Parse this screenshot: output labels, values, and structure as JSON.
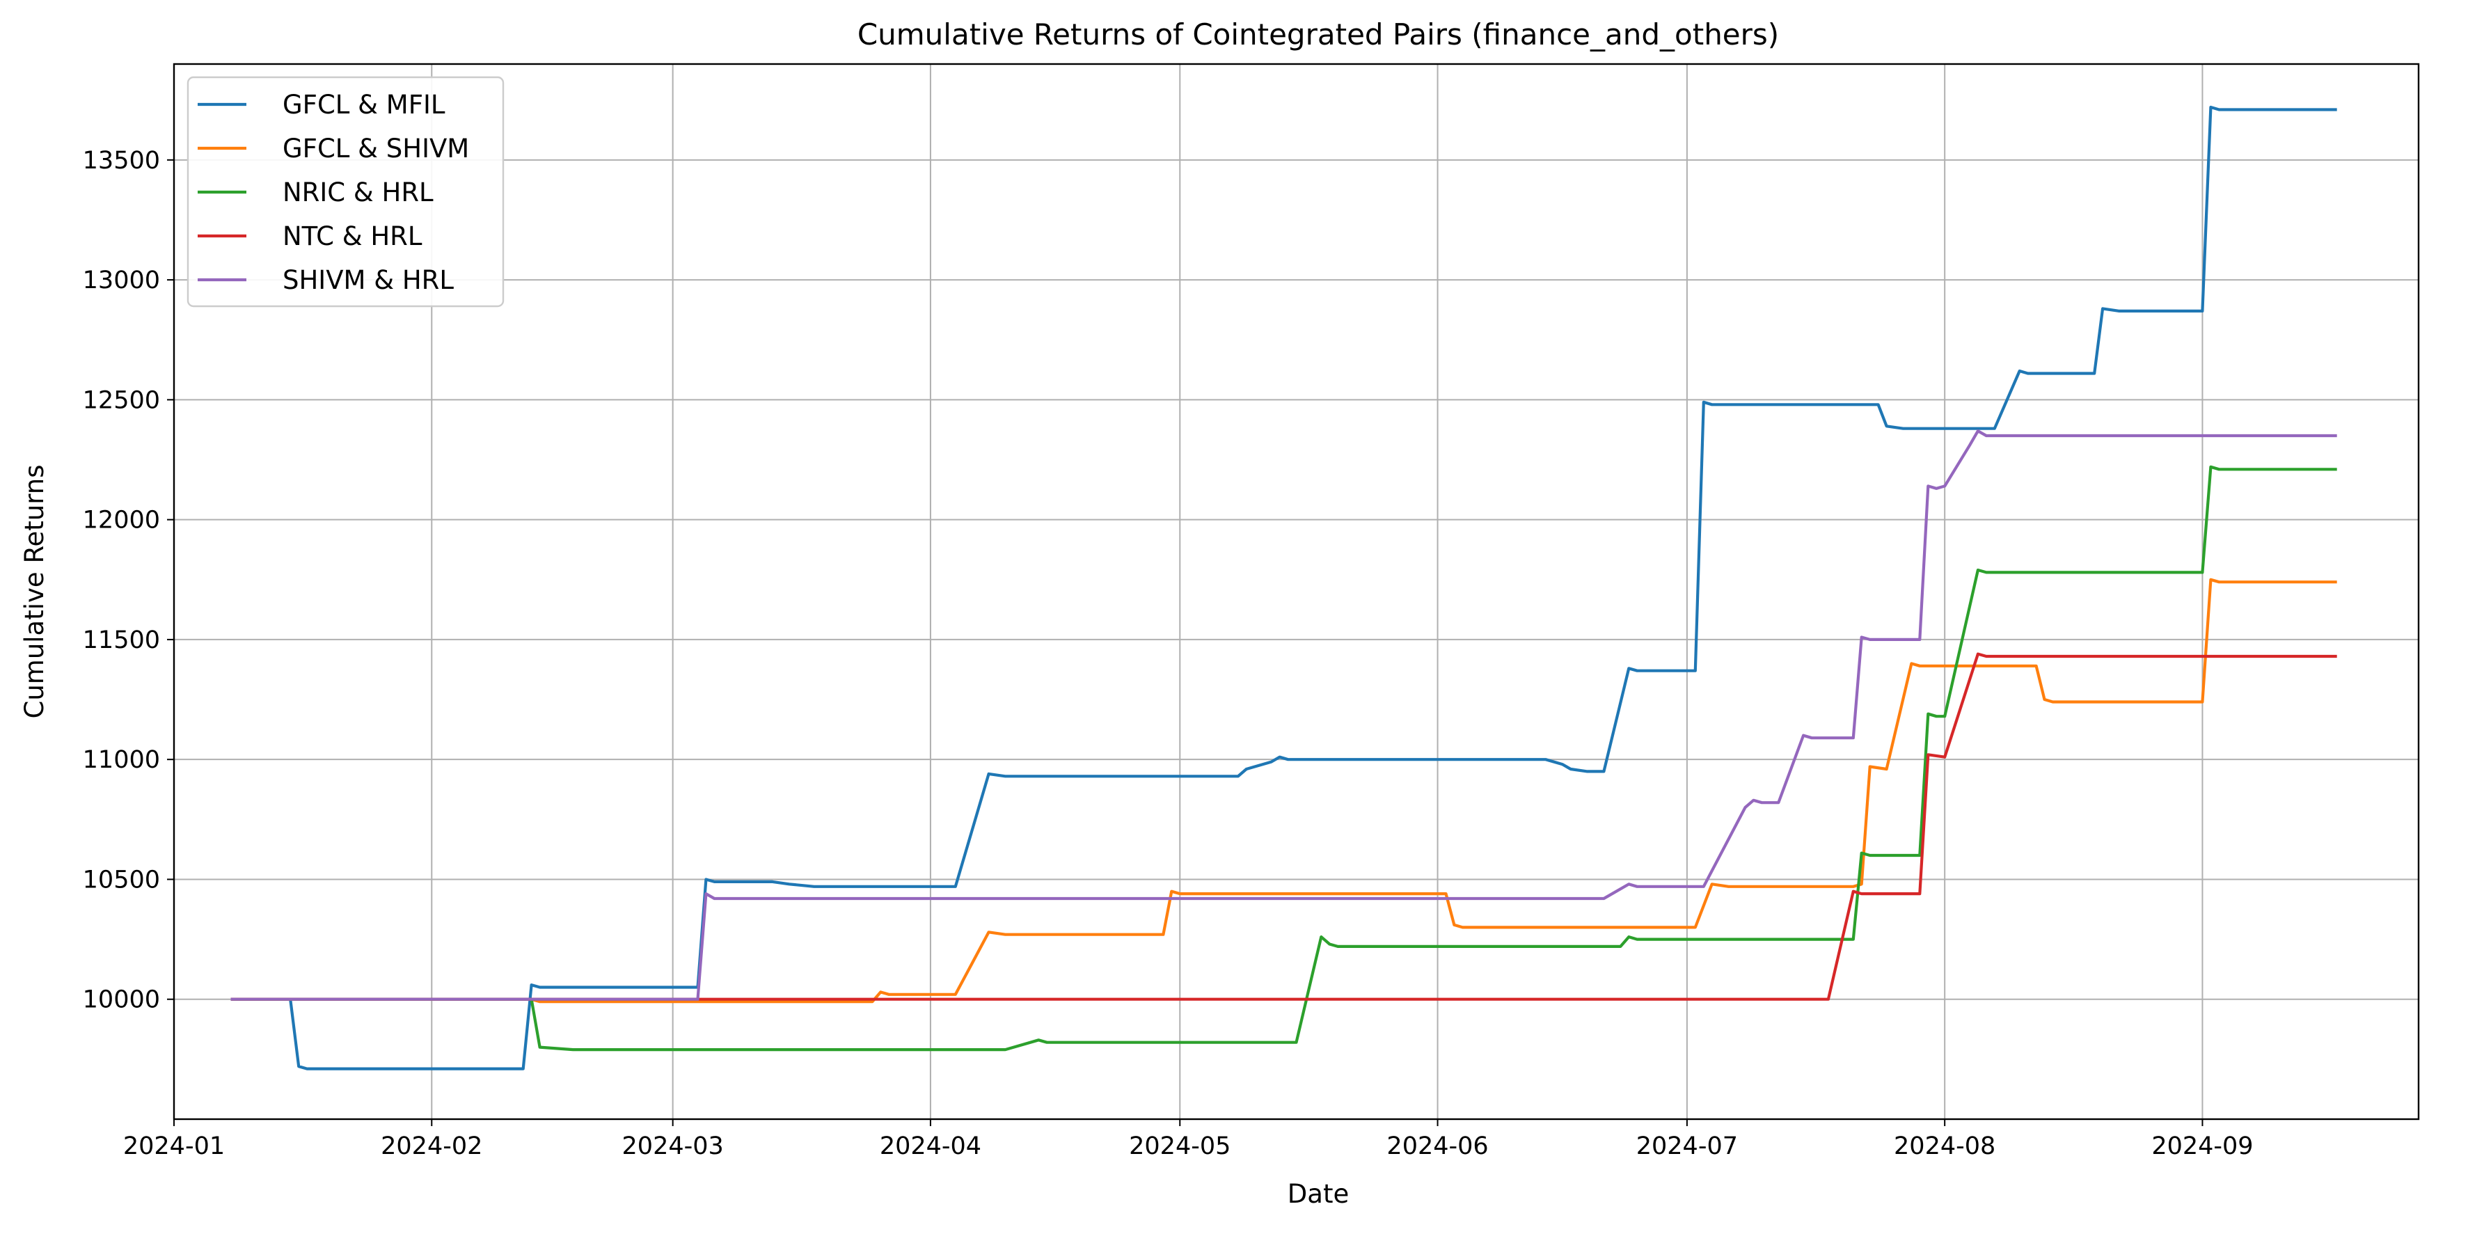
{
  "chart_data": {
    "type": "line",
    "title": "Cumulative Returns of Cointegrated Pairs (finance_and_others)",
    "xlabel": "Date",
    "ylabel": "Cumulative Returns",
    "xlim": [
      "2024-01-01",
      "2024-09-27"
    ],
    "ylim": [
      9500,
      13900
    ],
    "x_ticks": [
      "2024-01-01",
      "2024-02-01",
      "2024-03-01",
      "2024-04-01",
      "2024-05-01",
      "2024-06-01",
      "2024-07-01",
      "2024-08-01",
      "2024-09-01"
    ],
    "x_tick_labels": [
      "2024-01",
      "2024-02",
      "2024-03",
      "2024-04",
      "2024-05",
      "2024-06",
      "2024-07",
      "2024-08",
      "2024-09"
    ],
    "y_ticks": [
      10000,
      10500,
      11000,
      11500,
      12000,
      12500,
      13000,
      13500
    ],
    "y_tick_labels": [
      "10000",
      "10500",
      "11000",
      "11500",
      "12000",
      "12500",
      "13000",
      "13500"
    ],
    "grid": true,
    "legend_position": "upper-left",
    "series": [
      {
        "name": "GFCL & MFIL",
        "color": "#1f77b4",
        "points": [
          [
            "2024-01-08",
            10000
          ],
          [
            "2024-01-15",
            10000
          ],
          [
            "2024-01-16",
            9720
          ],
          [
            "2024-01-17",
            9710
          ],
          [
            "2024-02-12",
            9710
          ],
          [
            "2024-02-13",
            10060
          ],
          [
            "2024-02-14",
            10050
          ],
          [
            "2024-03-04",
            10050
          ],
          [
            "2024-03-05",
            10500
          ],
          [
            "2024-03-06",
            10490
          ],
          [
            "2024-03-13",
            10490
          ],
          [
            "2024-03-15",
            10480
          ],
          [
            "2024-03-18",
            10470
          ],
          [
            "2024-04-04",
            10470
          ],
          [
            "2024-04-08",
            10940
          ],
          [
            "2024-04-10",
            10930
          ],
          [
            "2024-05-06",
            10930
          ],
          [
            "2024-05-08",
            10930
          ],
          [
            "2024-05-09",
            10960
          ],
          [
            "2024-05-12",
            10990
          ],
          [
            "2024-05-13",
            11010
          ],
          [
            "2024-05-14",
            11000
          ],
          [
            "2024-06-14",
            11000
          ],
          [
            "2024-06-16",
            10980
          ],
          [
            "2024-06-17",
            10960
          ],
          [
            "2024-06-19",
            10950
          ],
          [
            "2024-06-21",
            10950
          ],
          [
            "2024-06-24",
            11380
          ],
          [
            "2024-06-25",
            11370
          ],
          [
            "2024-07-02",
            11370
          ],
          [
            "2024-07-03",
            12490
          ],
          [
            "2024-07-04",
            12480
          ],
          [
            "2024-07-24",
            12480
          ],
          [
            "2024-07-25",
            12390
          ],
          [
            "2024-07-27",
            12380
          ],
          [
            "2024-08-07",
            12380
          ],
          [
            "2024-08-10",
            12620
          ],
          [
            "2024-08-11",
            12610
          ],
          [
            "2024-08-19",
            12610
          ],
          [
            "2024-08-20",
            12880
          ],
          [
            "2024-08-22",
            12870
          ],
          [
            "2024-09-01",
            12870
          ],
          [
            "2024-09-02",
            13720
          ],
          [
            "2024-09-03",
            13710
          ],
          [
            "2024-09-17",
            13710
          ]
        ]
      },
      {
        "name": "GFCL & SHIVM",
        "color": "#ff7f0e",
        "points": [
          [
            "2024-01-08",
            10000
          ],
          [
            "2024-02-13",
            10000
          ],
          [
            "2024-02-14",
            9990
          ],
          [
            "2024-03-04",
            9990
          ],
          [
            "2024-03-25",
            9990
          ],
          [
            "2024-03-26",
            10030
          ],
          [
            "2024-03-27",
            10020
          ],
          [
            "2024-04-04",
            10020
          ],
          [
            "2024-04-08",
            10280
          ],
          [
            "2024-04-10",
            10270
          ],
          [
            "2024-04-29",
            10270
          ],
          [
            "2024-04-30",
            10450
          ],
          [
            "2024-05-01",
            10440
          ],
          [
            "2024-06-02",
            10440
          ],
          [
            "2024-06-03",
            10310
          ],
          [
            "2024-06-04",
            10300
          ],
          [
            "2024-07-02",
            10300
          ],
          [
            "2024-07-04",
            10480
          ],
          [
            "2024-07-06",
            10470
          ],
          [
            "2024-07-21",
            10470
          ],
          [
            "2024-07-22",
            10480
          ],
          [
            "2024-07-23",
            10970
          ],
          [
            "2024-07-25",
            10960
          ],
          [
            "2024-07-28",
            11400
          ],
          [
            "2024-07-29",
            11390
          ],
          [
            "2024-08-12",
            11390
          ],
          [
            "2024-08-13",
            11250
          ],
          [
            "2024-08-14",
            11240
          ],
          [
            "2024-09-01",
            11240
          ],
          [
            "2024-09-02",
            11750
          ],
          [
            "2024-09-03",
            11740
          ],
          [
            "2024-09-17",
            11740
          ]
        ]
      },
      {
        "name": "NRIC & HRL",
        "color": "#2ca02c",
        "points": [
          [
            "2024-01-08",
            10000
          ],
          [
            "2024-02-13",
            10000
          ],
          [
            "2024-02-14",
            9800
          ],
          [
            "2024-02-18",
            9790
          ],
          [
            "2024-04-10",
            9790
          ],
          [
            "2024-04-14",
            9830
          ],
          [
            "2024-04-15",
            9820
          ],
          [
            "2024-05-15",
            9820
          ],
          [
            "2024-05-18",
            10260
          ],
          [
            "2024-05-19",
            10230
          ],
          [
            "2024-05-20",
            10220
          ],
          [
            "2024-06-23",
            10220
          ],
          [
            "2024-06-24",
            10260
          ],
          [
            "2024-06-25",
            10250
          ],
          [
            "2024-07-21",
            10250
          ],
          [
            "2024-07-22",
            10610
          ],
          [
            "2024-07-23",
            10600
          ],
          [
            "2024-07-29",
            10600
          ],
          [
            "2024-07-30",
            11190
          ],
          [
            "2024-07-31",
            11180
          ],
          [
            "2024-08-01",
            11180
          ],
          [
            "2024-08-05",
            11790
          ],
          [
            "2024-08-06",
            11780
          ],
          [
            "2024-09-01",
            11780
          ],
          [
            "2024-09-02",
            12220
          ],
          [
            "2024-09-03",
            12210
          ],
          [
            "2024-09-17",
            12210
          ]
        ]
      },
      {
        "name": "NTC & HRL",
        "color": "#d62728",
        "points": [
          [
            "2024-01-08",
            10000
          ],
          [
            "2024-07-18",
            10000
          ],
          [
            "2024-07-21",
            10450
          ],
          [
            "2024-07-22",
            10440
          ],
          [
            "2024-07-29",
            10440
          ],
          [
            "2024-07-30",
            11020
          ],
          [
            "2024-08-01",
            11010
          ],
          [
            "2024-08-05",
            11440
          ],
          [
            "2024-08-06",
            11430
          ],
          [
            "2024-09-17",
            11430
          ]
        ]
      },
      {
        "name": "SHIVM & HRL",
        "color": "#9467bd",
        "points": [
          [
            "2024-01-08",
            10000
          ],
          [
            "2024-03-04",
            10000
          ],
          [
            "2024-03-05",
            10440
          ],
          [
            "2024-03-06",
            10420
          ],
          [
            "2024-06-19",
            10420
          ],
          [
            "2024-06-21",
            10420
          ],
          [
            "2024-06-24",
            10480
          ],
          [
            "2024-06-25",
            10470
          ],
          [
            "2024-07-03",
            10470
          ],
          [
            "2024-07-08",
            10800
          ],
          [
            "2024-07-09",
            10830
          ],
          [
            "2024-07-10",
            10820
          ],
          [
            "2024-07-12",
            10820
          ],
          [
            "2024-07-15",
            11100
          ],
          [
            "2024-07-16",
            11090
          ],
          [
            "2024-07-21",
            11090
          ],
          [
            "2024-07-22",
            11510
          ],
          [
            "2024-07-23",
            11500
          ],
          [
            "2024-07-29",
            11500
          ],
          [
            "2024-07-30",
            12140
          ],
          [
            "2024-07-31",
            12130
          ],
          [
            "2024-08-01",
            12140
          ],
          [
            "2024-08-04",
            12310
          ],
          [
            "2024-08-05",
            12370
          ],
          [
            "2024-08-06",
            12350
          ],
          [
            "2024-09-17",
            12350
          ]
        ]
      }
    ]
  }
}
